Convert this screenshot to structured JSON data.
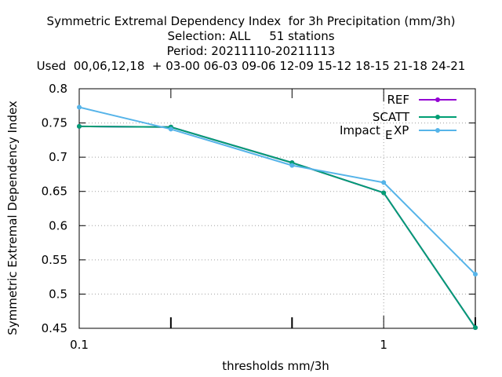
{
  "title_lines": [
    "Symmetric Extremal Dependency Index  for 3h Precipitation (mm/3h)",
    "Selection: ALL     51 stations",
    "Period: 20211110-20211113",
    "Used  00,06,12,18  + 03-00 06-03 09-06 12-09 15-12 18-15 21-18 24-21"
  ],
  "colors": {
    "REF": "#9400d3",
    "SCATT": "#009e73",
    "Impact_EXP": "#56b4e9",
    "grid": "#a0a0a0"
  },
  "chart_data": {
    "type": "line",
    "title": "Symmetric Extremal Dependency Index  for 3h Precipitation (mm/3h)",
    "xlabel": "thresholds mm/3h",
    "ylabel": "Symmetric Extremal Dependency Index",
    "xscale": "log",
    "xlim": [
      0.1,
      2
    ],
    "ylim": [
      0.45,
      0.8
    ],
    "xticks": [
      {
        "v": 0.1,
        "label": "0.1"
      },
      {
        "v": 1,
        "label": "1"
      }
    ],
    "xminor": [
      0.2,
      0.5,
      2
    ],
    "yticks": [
      {
        "v": 0.45,
        "label": "0.45"
      },
      {
        "v": 0.5,
        "label": "0.5"
      },
      {
        "v": 0.55,
        "label": "0.55"
      },
      {
        "v": 0.6,
        "label": "0.6"
      },
      {
        "v": 0.65,
        "label": "0.65"
      },
      {
        "v": 0.7,
        "label": "0.7"
      },
      {
        "v": 0.75,
        "label": "0.75"
      },
      {
        "v": 0.8,
        "label": "0.8"
      }
    ],
    "grid": true,
    "legend_position": "top-right",
    "series": [
      {
        "name": "REF",
        "key": "REF",
        "x": [
          0.1,
          0.2,
          0.5,
          1,
          2
        ],
        "values": [
          0.745,
          0.744,
          0.692,
          0.648,
          0.451
        ]
      },
      {
        "name": "SCATT",
        "key": "SCATT",
        "x": [
          0.1,
          0.2,
          0.5,
          1,
          2
        ],
        "values": [
          0.745,
          0.744,
          0.692,
          0.648,
          0.451
        ]
      },
      {
        "name": "Impact_EXP",
        "key": "Impact_EXP",
        "legend_main": "Impact",
        "legend_sub": "E",
        "legend_tail": "XP",
        "x": [
          0.1,
          0.2,
          0.5,
          1,
          2
        ],
        "values": [
          0.773,
          0.741,
          0.688,
          0.663,
          0.529
        ]
      }
    ]
  }
}
